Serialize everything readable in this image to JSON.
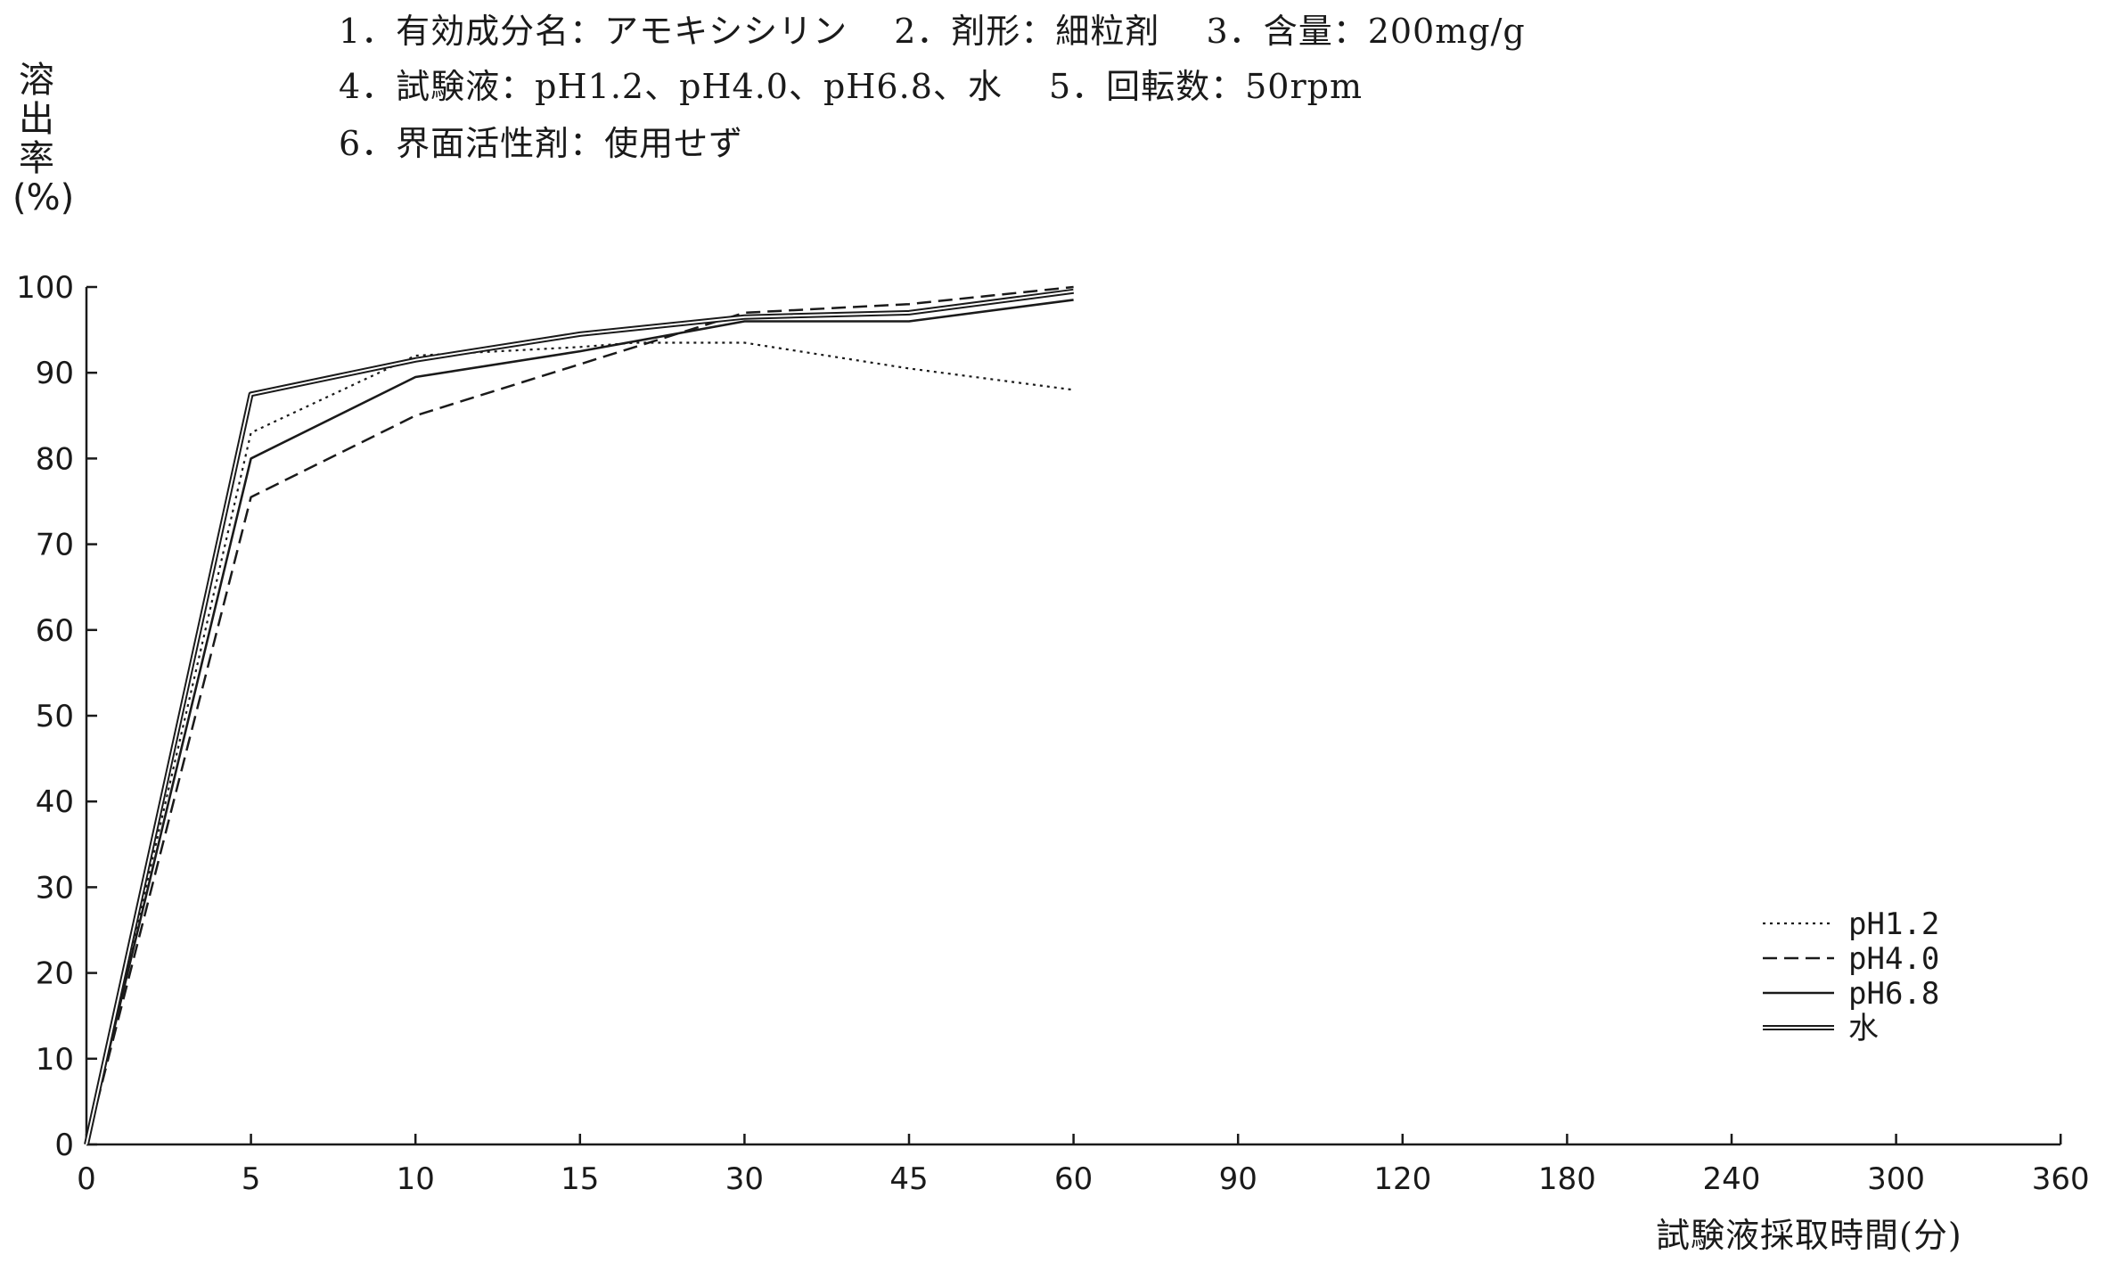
{
  "header": {
    "line1": "1．有効成分名：アモキシシリン　 2．剤形：細粒剤　 3．含量：200mg/g",
    "line2": "4．試験液：pH1.2、pH4.0、pH6.8、水　 5．回転数：50rpm",
    "line3": "6．界面活性剤：使用せず"
  },
  "chart_data": {
    "type": "line",
    "ylabel": "溶出率(%)",
    "xlabel": "試験液採取時間(分)",
    "categories": [
      "0",
      "5",
      "10",
      "15",
      "30",
      "45",
      "60",
      "90",
      "120",
      "180",
      "240",
      "300",
      "360"
    ],
    "ylim": [
      0,
      100
    ],
    "yticks": [
      0,
      10,
      20,
      30,
      40,
      50,
      60,
      70,
      80,
      90,
      100
    ],
    "grid": false,
    "legend_position": "bottom-right",
    "series": [
      {
        "name": "pH1.2",
        "style": "dotted",
        "x": [
          0,
          5,
          10,
          15,
          20,
          30,
          45,
          60
        ],
        "values": [
          0,
          83,
          92,
          93,
          93.5,
          93.5,
          90.5,
          88
        ]
      },
      {
        "name": "pH4.0",
        "style": "dashed",
        "x": [
          0,
          5,
          10,
          15,
          30,
          45,
          60
        ],
        "values": [
          0,
          75.5,
          85,
          91,
          97,
          98,
          100
        ]
      },
      {
        "name": "pH6.8",
        "style": "solid",
        "x": [
          0,
          5,
          10,
          15,
          30,
          45,
          60
        ],
        "values": [
          0,
          80,
          89.5,
          92.5,
          96,
          96,
          98.5
        ]
      },
      {
        "name": "水",
        "style": "double",
        "x": [
          0,
          5,
          10,
          15,
          30,
          45,
          60
        ],
        "values": [
          0,
          87.5,
          91.5,
          94.5,
          96.5,
          97,
          99.5
        ]
      }
    ]
  },
  "colors": {
    "line": "#1a1a1a",
    "background": "#ffffff"
  }
}
